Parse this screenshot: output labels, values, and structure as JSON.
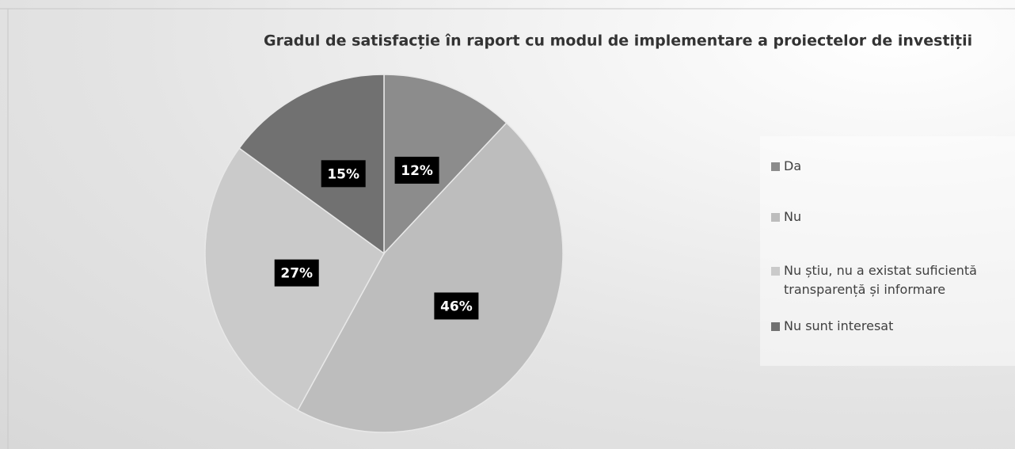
{
  "chart_data": {
    "type": "pie",
    "title": "Gradul de satisfacție în raport cu modul de implementare a proiectelor de investiții",
    "categories": [
      "Da",
      "Nu",
      "Nu știu, nu a existat suficientă transparență și informare",
      "Nu sunt interesat"
    ],
    "values": [
      12,
      46,
      27,
      15
    ],
    "value_labels": [
      "12%",
      "46%",
      "27%",
      "15%"
    ],
    "colors": [
      "#8c8c8c",
      "#bdbdbd",
      "#cacaca",
      "#717171"
    ],
    "legend": "right"
  }
}
